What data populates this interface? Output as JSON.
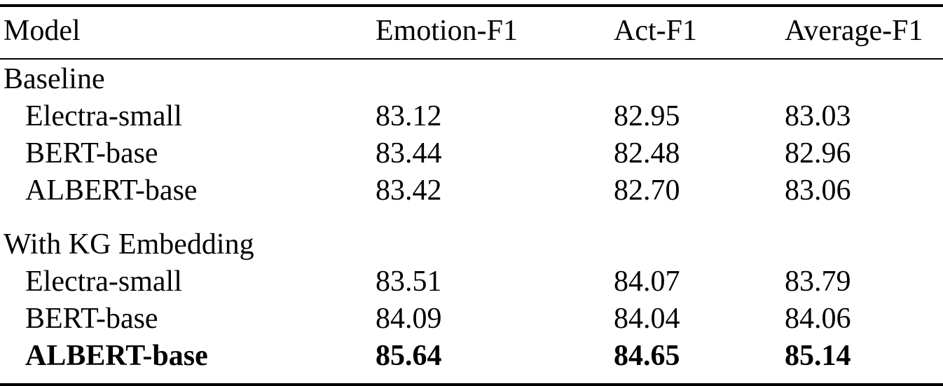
{
  "table": {
    "columns": [
      "Model",
      "Emotion-F1",
      "Act-F1",
      "Average-F1"
    ],
    "sections": [
      {
        "label": "Baseline",
        "rows": [
          {
            "model": "Electra-small",
            "emotion_f1": "83.12",
            "act_f1": "82.95",
            "average_f1": "83.03"
          },
          {
            "model": "BERT-base",
            "emotion_f1": "83.44",
            "act_f1": "82.48",
            "average_f1": "82.96"
          },
          {
            "model": "ALBERT-base",
            "emotion_f1": "83.42",
            "act_f1": "82.70",
            "average_f1": "83.06"
          }
        ]
      },
      {
        "label": "With KG Embedding",
        "rows": [
          {
            "model": "Electra-small",
            "emotion_f1": "83.51",
            "act_f1": "84.07",
            "average_f1": "83.79"
          },
          {
            "model": "BERT-base",
            "emotion_f1": "84.09",
            "act_f1": "84.04",
            "average_f1": "84.06"
          },
          {
            "model": "ALBERT-base",
            "emotion_f1": "85.64",
            "act_f1": "84.65",
            "average_f1": "85.14"
          }
        ]
      }
    ]
  }
}
